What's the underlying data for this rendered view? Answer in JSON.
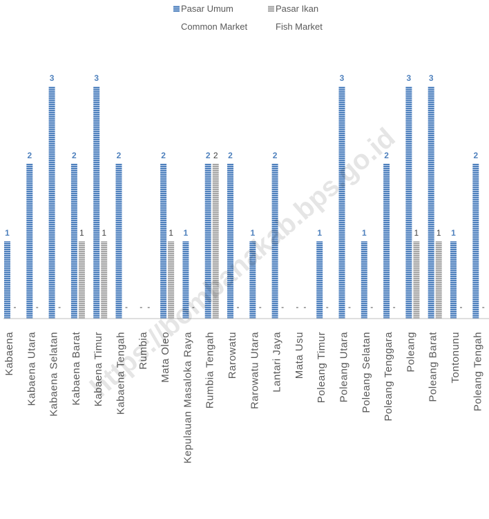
{
  "colors": {
    "common_market": "#4f81bd",
    "fish_market": "#a6a6a6",
    "axis": "#bfbfbf",
    "label_text": "#595959"
  },
  "legend": {
    "common_line1": "Pasar Umum",
    "common_line2": "Common Market",
    "fish_line1": "Pasar Ikan",
    "fish_line2": "Fish Market"
  },
  "watermark": "https://bombanakab.bps.go.id",
  "chart_data": {
    "type": "bar",
    "title": "",
    "xlabel": "",
    "ylabel": "",
    "ylim": [
      0,
      3
    ],
    "grid": false,
    "legend_position": "top",
    "categories": [
      "Kabaena",
      "Kabaena Utara",
      "Kabaena Selatan",
      "Kabaena Barat",
      "Kabaena Timur",
      "Kabaena Tengah",
      "Rumbia",
      "Mata Oleo",
      "Kepulauan Masaloka Raya",
      "Rumbia Tengah",
      "Rarowatu",
      "Rarowatu Utara",
      "Lantari Jaya",
      "Mata Usu",
      "Poleang Timur",
      "Poleang Utara",
      "Poleang Selatan",
      "Poleang Tenggara",
      "Poleang",
      "Poleang Barat",
      "Tontonunu",
      "Poleang Tengah"
    ],
    "series": [
      {
        "name": "Pasar Umum Common Market",
        "values": [
          1,
          2,
          3,
          2,
          3,
          2,
          0,
          2,
          1,
          2,
          2,
          1,
          2,
          0,
          1,
          3,
          1,
          2,
          3,
          3,
          1,
          2
        ]
      },
      {
        "name": "Pasar Ikan Fish Market",
        "values": [
          0,
          0,
          0,
          1,
          1,
          0,
          0,
          1,
          0,
          2,
          0,
          0,
          0,
          0,
          0,
          0,
          0,
          0,
          1,
          1,
          0,
          0
        ]
      }
    ],
    "zero_label": "-"
  }
}
